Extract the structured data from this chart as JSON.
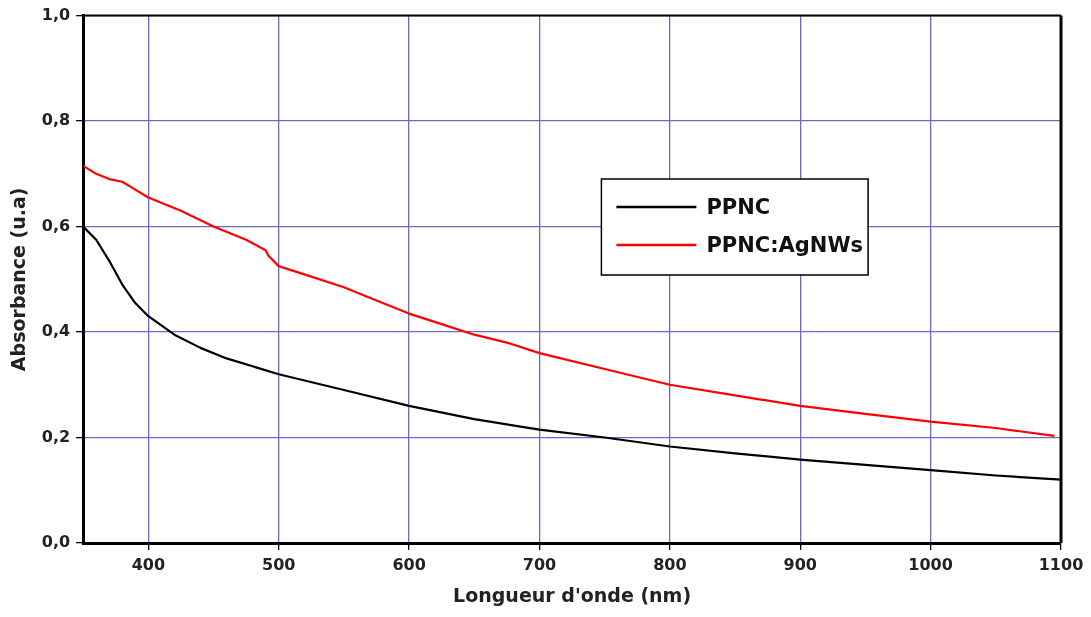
{
  "chart_data": {
    "type": "line",
    "xlabel": "Longueur d'onde (nm)",
    "ylabel": "Absorbance (u.a)",
    "xlim": [
      350,
      1100
    ],
    "xticks": [
      400,
      500,
      600,
      700,
      800,
      900,
      1000,
      1100
    ],
    "ylim": [
      0,
      1
    ],
    "yticks": [
      {
        "value": 0,
        "label": "0,0"
      },
      {
        "value": 0.2,
        "label": "0,2"
      },
      {
        "value": 0.4,
        "label": "0,4"
      },
      {
        "value": 0.6,
        "label": "0,6"
      },
      {
        "value": 0.8,
        "label": "0,8"
      },
      {
        "value": 1,
        "label": "1,0"
      }
    ],
    "grid": true,
    "legend": "right",
    "marker": "none",
    "line_style": "solid",
    "series": [
      {
        "name": "PPNC",
        "color": "#000000",
        "x": [
          350,
          360,
          370,
          380,
          390,
          400,
          420,
          440,
          460,
          480,
          500,
          550,
          600,
          650,
          700,
          750,
          800,
          850,
          900,
          950,
          1000,
          1050,
          1100
        ],
        "values": [
          0.6,
          0.575,
          0.535,
          0.49,
          0.455,
          0.43,
          0.395,
          0.37,
          0.35,
          0.335,
          0.32,
          0.29,
          0.26,
          0.235,
          0.215,
          0.2,
          0.183,
          0.17,
          0.158,
          0.148,
          0.138,
          0.128,
          0.12
        ]
      },
      {
        "name": "PPNC:AgNWs",
        "color": "#ff0000",
        "x": [
          350,
          360,
          370,
          380,
          390,
          400,
          425,
          450,
          475,
          490,
          492,
          500,
          525,
          550,
          575,
          600,
          625,
          650,
          675,
          700,
          750,
          800,
          850,
          900,
          950,
          1000,
          1050,
          1095
        ],
        "values": [
          0.715,
          0.7,
          0.69,
          0.685,
          0.67,
          0.655,
          0.63,
          0.6,
          0.575,
          0.555,
          0.545,
          0.525,
          0.505,
          0.485,
          0.46,
          0.435,
          0.415,
          0.395,
          0.38,
          0.36,
          0.33,
          0.3,
          0.28,
          0.26,
          0.245,
          0.23,
          0.218,
          0.203
        ]
      }
    ]
  }
}
